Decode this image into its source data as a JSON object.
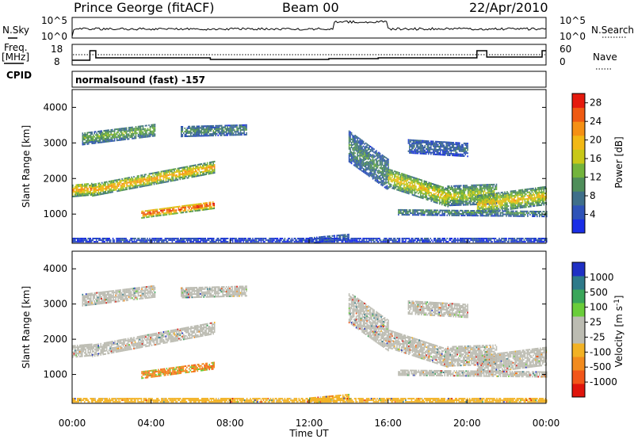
{
  "header": {
    "station": "Prince George (fitACF)",
    "beam": "Beam 00",
    "date": "22/Apr/2010"
  },
  "strips": {
    "nsky_label": "N.Sky",
    "nsearch_label": "N.Search",
    "noise_ticks": [
      "10^5",
      "10^0"
    ],
    "freq_label": "Freq.",
    "freq_unit": "[MHz]",
    "freq_ticks": [
      "18",
      "8"
    ],
    "nave_label": "Nave",
    "nave_ticks": [
      "60",
      "0"
    ],
    "cpid_label": "CPID",
    "cpid_value": "normalsound (fast) -157"
  },
  "colors": {
    "power": [
      "#1a2ee6",
      "#2f53b8",
      "#3f6f8a",
      "#4f8e5a",
      "#73b43c",
      "#c8c818",
      "#f2b815",
      "#f59014",
      "#ef5a12",
      "#e51a0e"
    ],
    "velocity": [
      "#e0150c",
      "#f2561a",
      "#f28b1e",
      "#f2b225",
      "#bcbcb2",
      "#bcbcb2",
      "#6acd3a",
      "#3aa65a",
      "#2e7a8a",
      "#1f30c4"
    ]
  },
  "chart_data": [
    {
      "type": "heatmap",
      "name": "power",
      "xlabel": "Time UT",
      "ylabel": "Slant Range [km]",
      "ylim": [
        180,
        4500
      ],
      "xlim": [
        0,
        24
      ],
      "y_ticks": [
        "4000",
        "3000",
        "2000",
        "1000"
      ],
      "y_tick_values": [
        4000,
        3000,
        2000,
        1000
      ],
      "colorbar_label": "Power [dB]",
      "colorbar_ticks": [
        "28",
        "24",
        "20",
        "16",
        "12",
        "8",
        "4"
      ],
      "colorbar_tick_values": [
        28,
        24,
        20,
        16,
        12,
        8,
        4
      ],
      "colorbar_range": [
        0,
        30
      ]
    },
    {
      "type": "heatmap",
      "name": "velocity",
      "xlabel": "Time UT",
      "ylabel": "Slant Range [km]",
      "ylim": [
        180,
        4500
      ],
      "xlim": [
        0,
        24
      ],
      "y_ticks": [
        "4000",
        "3000",
        "2000",
        "1000"
      ],
      "y_tick_values": [
        4000,
        3000,
        2000,
        1000
      ],
      "colorbar_label": "Velocity [m s",
      "colorbar_label_sup": "-1",
      "colorbar_label_end": "]",
      "colorbar_ticks": [
        "1000",
        "500",
        "100",
        "25",
        "-25",
        "-100",
        "-500",
        "-1000"
      ]
    }
  ],
  "x_axis": {
    "label": "Time UT",
    "ticks": [
      "00:00",
      "04:00",
      "08:00",
      "12:00",
      "16:00",
      "20:00",
      "00:00"
    ],
    "tick_hours": [
      0,
      4,
      8,
      12,
      16,
      20,
      24
    ]
  }
}
